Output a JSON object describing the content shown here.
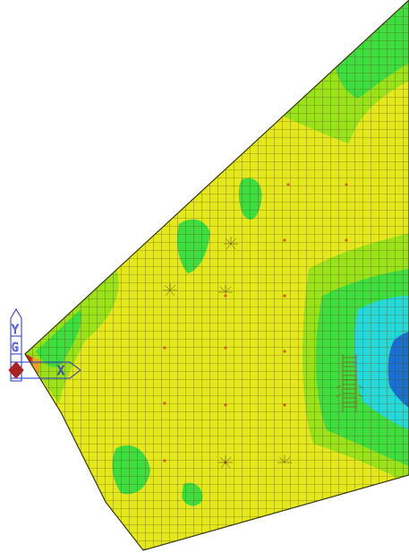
{
  "view": {
    "background": "#ffffff",
    "mesh_line_color": "#4a4a10",
    "contour_colors": {
      "deep": "#1a6fcf",
      "cyan": "#27d8d8",
      "light_green": "#3fdd3f",
      "green_yellow": "#9ae21a",
      "yellow": "#e4e81c",
      "orange": "#f0a020",
      "red": "#cc2200"
    },
    "axis_color": "#2233cc"
  },
  "axis_triad": {
    "y_label": "Y",
    "g_label": "G",
    "x_label": "X"
  }
}
